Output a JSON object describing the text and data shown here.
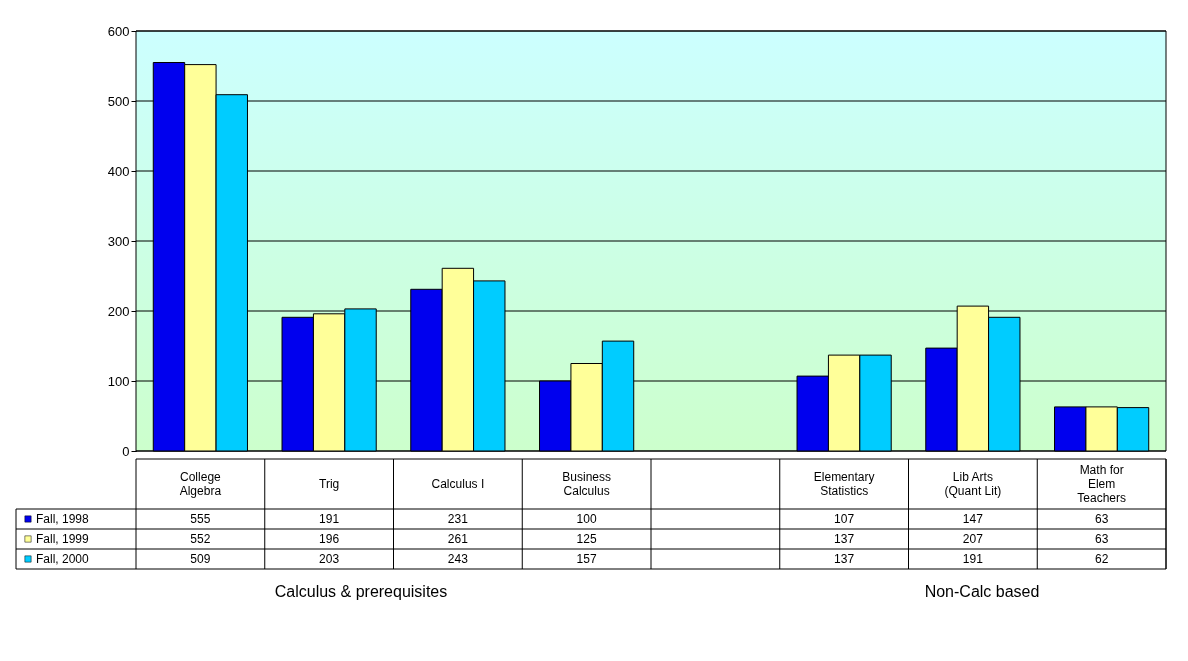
{
  "chart_data": {
    "type": "bar",
    "categories": [
      "College Algebra",
      "Trig",
      "Calculus I",
      "Business Calculus",
      null,
      "Elementary Statistics",
      "Lib Arts (Quant Lit)",
      "Math for Elem Teachers"
    ],
    "series": [
      {
        "name": "Fall, 1998",
        "color": "#0000ee",
        "values": [
          555,
          191,
          231,
          100,
          null,
          107,
          147,
          63
        ]
      },
      {
        "name": "Fall, 1999",
        "color": "#ffff99",
        "values": [
          552,
          196,
          261,
          125,
          null,
          137,
          207,
          63
        ]
      },
      {
        "name": "Fall, 2000",
        "color": "#00ccff",
        "values": [
          509,
          203,
          243,
          157,
          null,
          137,
          191,
          62
        ]
      }
    ],
    "ylim": [
      0,
      600
    ],
    "yticks": [
      0,
      100,
      200,
      300,
      400,
      500,
      600
    ],
    "grid": "y",
    "legend": "bottom",
    "data_labels": true,
    "annotations": [
      "Calculus & prerequisites",
      "Non-Calc based"
    ]
  }
}
